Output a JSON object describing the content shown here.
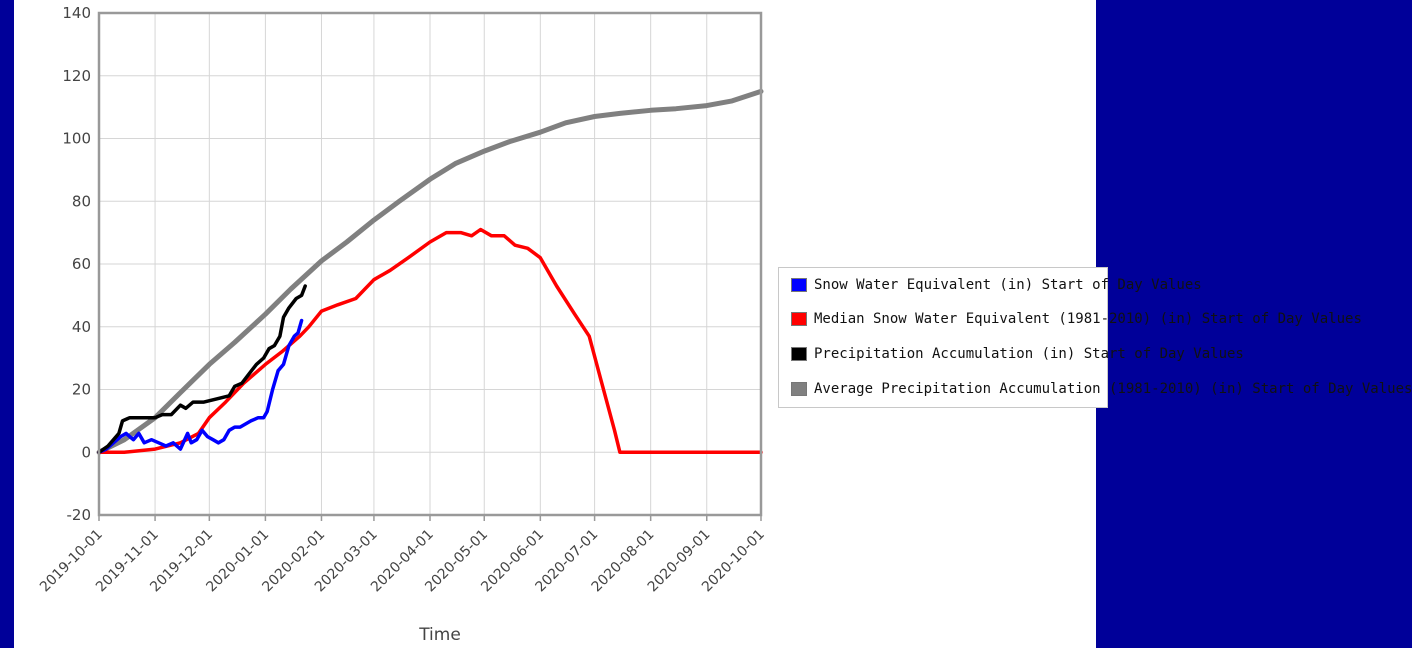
{
  "chart_data": {
    "type": "line",
    "xlabel": "Time",
    "ylabel": "",
    "ylim": [
      -20,
      140
    ],
    "yticks": [
      -20,
      0,
      20,
      40,
      60,
      80,
      100,
      120,
      140
    ],
    "xlim": [
      "2019-10-01",
      "2020-10-01"
    ],
    "xticks": [
      "2019-10-01",
      "2019-11-01",
      "2019-12-01",
      "2020-01-01",
      "2020-02-01",
      "2020-03-01",
      "2020-04-01",
      "2020-05-01",
      "2020-06-01",
      "2020-07-01",
      "2020-08-01",
      "2020-09-01",
      "2020-10-01"
    ],
    "grid": true,
    "legend_position": "right",
    "series": [
      {
        "name": "Snow Water Equivalent (in) Start of Day Values",
        "color": "#0000ff",
        "points": [
          [
            "2019-10-01",
            0
          ],
          [
            "2019-10-05",
            1
          ],
          [
            "2019-10-09",
            3
          ],
          [
            "2019-10-13",
            5
          ],
          [
            "2019-10-16",
            6
          ],
          [
            "2019-10-18",
            5
          ],
          [
            "2019-10-20",
            4
          ],
          [
            "2019-10-23",
            6
          ],
          [
            "2019-10-26",
            3
          ],
          [
            "2019-10-30",
            4
          ],
          [
            "2019-11-03",
            3
          ],
          [
            "2019-11-07",
            2
          ],
          [
            "2019-11-11",
            3
          ],
          [
            "2019-11-15",
            1
          ],
          [
            "2019-11-19",
            6
          ],
          [
            "2019-11-21",
            3
          ],
          [
            "2019-11-24",
            4
          ],
          [
            "2019-11-27",
            7
          ],
          [
            "2019-11-30",
            5
          ],
          [
            "2019-12-03",
            4
          ],
          [
            "2019-12-06",
            3
          ],
          [
            "2019-12-09",
            4
          ],
          [
            "2019-12-12",
            7
          ],
          [
            "2019-12-15",
            8
          ],
          [
            "2019-12-18",
            8
          ],
          [
            "2019-12-21",
            9
          ],
          [
            "2019-12-24",
            10
          ],
          [
            "2019-12-28",
            11
          ],
          [
            "2019-12-31",
            11
          ],
          [
            "2020-01-02",
            13
          ],
          [
            "2020-01-05",
            20
          ],
          [
            "2020-01-08",
            26
          ],
          [
            "2020-01-11",
            28
          ],
          [
            "2020-01-14",
            34
          ],
          [
            "2020-01-17",
            37
          ],
          [
            "2020-01-19",
            38
          ],
          [
            "2020-01-21",
            42
          ]
        ]
      },
      {
        "name": "Median Snow Water Equivalent (1981-2010) (in) Start of Day Values",
        "color": "#ff0000",
        "points": [
          [
            "2019-10-01",
            0
          ],
          [
            "2019-10-15",
            0
          ],
          [
            "2019-11-01",
            1
          ],
          [
            "2019-11-15",
            3
          ],
          [
            "2019-11-25",
            6
          ],
          [
            "2019-12-01",
            11
          ],
          [
            "2019-12-10",
            16
          ],
          [
            "2019-12-20",
            22
          ],
          [
            "2020-01-01",
            28
          ],
          [
            "2020-01-10",
            32
          ],
          [
            "2020-01-20",
            37
          ],
          [
            "2020-01-25",
            40
          ],
          [
            "2020-02-01",
            45
          ],
          [
            "2020-02-10",
            47
          ],
          [
            "2020-02-20",
            49
          ],
          [
            "2020-03-01",
            55
          ],
          [
            "2020-03-10",
            58
          ],
          [
            "2020-03-20",
            62
          ],
          [
            "2020-04-01",
            67
          ],
          [
            "2020-04-10",
            70
          ],
          [
            "2020-04-18",
            70
          ],
          [
            "2020-04-24",
            69
          ],
          [
            "2020-04-29",
            71
          ],
          [
            "2020-05-05",
            69
          ],
          [
            "2020-05-12",
            69
          ],
          [
            "2020-05-18",
            66
          ],
          [
            "2020-05-25",
            65
          ],
          [
            "2020-06-01",
            62
          ],
          [
            "2020-06-10",
            53
          ],
          [
            "2020-06-20",
            44
          ],
          [
            "2020-06-28",
            37
          ],
          [
            "2020-07-05",
            22
          ],
          [
            "2020-07-12",
            7
          ],
          [
            "2020-07-15",
            0
          ],
          [
            "2020-10-01",
            0
          ]
        ]
      },
      {
        "name": "Precipitation Accumulation (in) Start of Day Values",
        "color": "#000000",
        "points": [
          [
            "2019-10-01",
            0
          ],
          [
            "2019-10-06",
            2
          ],
          [
            "2019-10-09",
            4
          ],
          [
            "2019-10-12",
            6
          ],
          [
            "2019-10-14",
            10
          ],
          [
            "2019-10-18",
            11
          ],
          [
            "2019-10-25",
            11
          ],
          [
            "2019-11-01",
            11
          ],
          [
            "2019-11-05",
            12
          ],
          [
            "2019-11-10",
            12
          ],
          [
            "2019-11-15",
            15
          ],
          [
            "2019-11-18",
            14
          ],
          [
            "2019-11-22",
            16
          ],
          [
            "2019-11-28",
            16
          ],
          [
            "2019-12-05",
            17
          ],
          [
            "2019-12-12",
            18
          ],
          [
            "2019-12-15",
            21
          ],
          [
            "2019-12-19",
            22
          ],
          [
            "2019-12-23",
            25
          ],
          [
            "2019-12-27",
            28
          ],
          [
            "2019-12-31",
            30
          ],
          [
            "2020-01-03",
            33
          ],
          [
            "2020-01-06",
            34
          ],
          [
            "2020-01-09",
            37
          ],
          [
            "2020-01-11",
            43
          ],
          [
            "2020-01-14",
            46
          ],
          [
            "2020-01-18",
            49
          ],
          [
            "2020-01-21",
            50
          ],
          [
            "2020-01-23",
            53
          ]
        ]
      },
      {
        "name": "Average Precipitation Accumulation (1981-2010) (in) Start of Day Values",
        "color": "#808080",
        "points": [
          [
            "2019-10-01",
            0
          ],
          [
            "2019-10-15",
            4
          ],
          [
            "2019-11-01",
            11
          ],
          [
            "2019-11-15",
            19
          ],
          [
            "2019-12-01",
            28
          ],
          [
            "2019-12-15",
            35
          ],
          [
            "2020-01-01",
            44
          ],
          [
            "2020-01-15",
            52
          ],
          [
            "2020-02-01",
            61
          ],
          [
            "2020-02-15",
            67
          ],
          [
            "2020-03-01",
            74
          ],
          [
            "2020-03-15",
            80
          ],
          [
            "2020-04-01",
            87
          ],
          [
            "2020-04-15",
            92
          ],
          [
            "2020-05-01",
            96
          ],
          [
            "2020-05-15",
            99
          ],
          [
            "2020-06-01",
            102
          ],
          [
            "2020-06-15",
            105
          ],
          [
            "2020-07-01",
            107
          ],
          [
            "2020-07-15",
            108
          ],
          [
            "2020-08-01",
            109
          ],
          [
            "2020-08-15",
            109.5
          ],
          [
            "2020-09-01",
            110.5
          ],
          [
            "2020-09-15",
            112
          ],
          [
            "2020-10-01",
            115
          ]
        ]
      }
    ]
  },
  "legend": {
    "items": [
      {
        "label": "Snow Water Equivalent (in) Start of Day Values",
        "color": "#0000ff"
      },
      {
        "label": "Median Snow Water Equivalent (1981-2010) (in) Start of Day Values",
        "color": "#ff0000"
      },
      {
        "label": "Precipitation Accumulation (in) Start of Day Values",
        "color": "#000000"
      },
      {
        "label": "Average Precipitation Accumulation (1981-2010) (in) Start of Day Values",
        "color": "#808080"
      }
    ]
  }
}
